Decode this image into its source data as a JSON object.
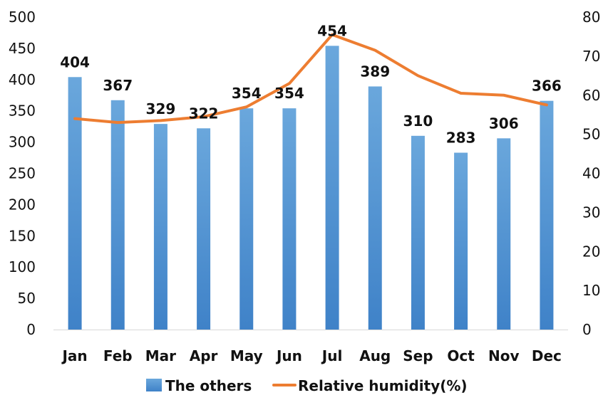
{
  "chart_data": {
    "type": "bar",
    "categories": [
      "Jan",
      "Feb",
      "Mar",
      "Apr",
      "May",
      "Jun",
      "Jul",
      "Aug",
      "Sep",
      "Oct",
      "Nov",
      "Dec"
    ],
    "series": [
      {
        "name": "The others",
        "type": "bar",
        "axis": "left",
        "color": "#5b9bd5",
        "values": [
          404,
          367,
          329,
          322,
          354,
          354,
          454,
          389,
          310,
          283,
          306,
          366
        ],
        "data_labels": [
          "404",
          "367",
          "329",
          "322",
          "354",
          "354",
          "454",
          "389",
          "310",
          "283",
          "306",
          "366"
        ]
      },
      {
        "name": "Relative humidity(%)",
        "type": "line",
        "axis": "right",
        "color": "#ed7d31",
        "values": [
          54,
          53,
          53.5,
          54.5,
          57,
          63,
          75.5,
          71.5,
          65,
          60.5,
          60,
          57.5
        ]
      }
    ],
    "y_left": {
      "min": 0,
      "max": 500,
      "ticks": [
        "0",
        "50",
        "100",
        "150",
        "200",
        "250",
        "300",
        "350",
        "400",
        "450",
        "500"
      ]
    },
    "y_right": {
      "min": 0,
      "max": 80,
      "ticks": [
        "0",
        "10",
        "20",
        "30",
        "40",
        "50",
        "60",
        "70",
        "80"
      ]
    },
    "title": "",
    "xlabel": "",
    "ylabel": "",
    "grid": false,
    "legend": {
      "position": "bottom",
      "entries": [
        "The others",
        "Relative humidity(%)"
      ]
    }
  }
}
